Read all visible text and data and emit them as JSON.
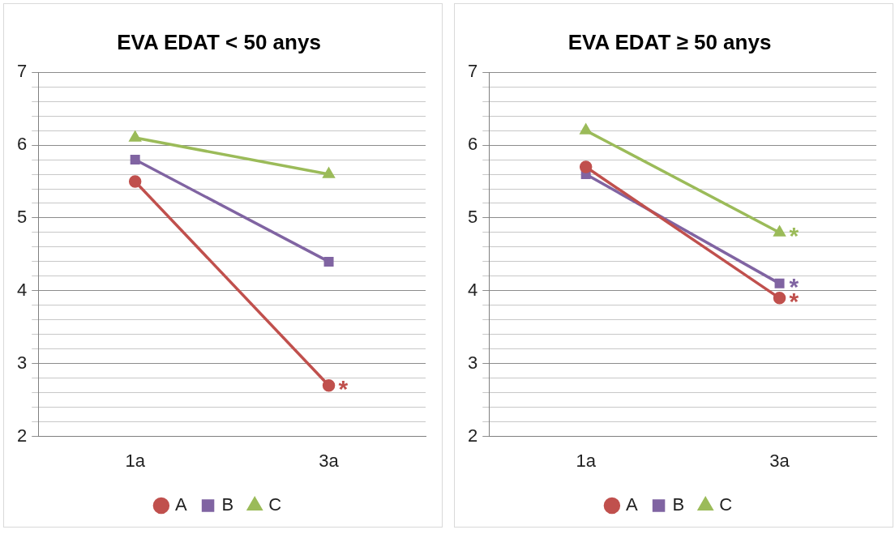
{
  "chart_data": [
    {
      "type": "line",
      "title": "EVA EDAT < 50 anys",
      "categories": [
        "1a",
        "3a"
      ],
      "series": [
        {
          "name": "A",
          "color": "#c0504d",
          "marker": "circle",
          "values": [
            5.5,
            2.7
          ]
        },
        {
          "name": "B",
          "color": "#8064a2",
          "marker": "square",
          "values": [
            5.8,
            4.4
          ]
        },
        {
          "name": "C",
          "color": "#9bbb59",
          "marker": "triangle",
          "values": [
            6.1,
            5.6
          ]
        }
      ],
      "ylim": [
        2,
        7
      ],
      "yticks": [
        2,
        {
          "value": 2.2,
          "label": null
        },
        {
          "value": 2.4,
          "label": null
        },
        {
          "value": 2.6,
          "label": null
        },
        {
          "value": 2.8,
          "label": null
        },
        3,
        {
          "value": 3.2,
          "label": null
        },
        {
          "value": 3.4,
          "label": null
        },
        {
          "value": 3.6,
          "label": null
        },
        {
          "value": 3.8,
          "label": null
        },
        4,
        {
          "value": 4.2,
          "label": null
        },
        {
          "value": 4.4,
          "label": null
        },
        {
          "value": 4.6,
          "label": null
        },
        {
          "value": 4.8,
          "label": null
        },
        5,
        {
          "value": 5.2,
          "label": null
        },
        {
          "value": 5.4,
          "label": null
        },
        {
          "value": 5.6,
          "label": null
        },
        {
          "value": 5.8,
          "label": null
        },
        6,
        {
          "value": 6.2,
          "label": null
        },
        {
          "value": 6.4,
          "label": null
        },
        {
          "value": 6.6,
          "label": null
        },
        {
          "value": 6.8,
          "label": null
        },
        7
      ],
      "grid": "y",
      "legend": "bottom",
      "line_style": "solid",
      "annotations": [
        {
          "text": "*",
          "x": "3a",
          "y": 2.7
        }
      ]
    },
    {
      "type": "line",
      "title": "EVA EDAT ≥ 50 anys",
      "categories": [
        "1a",
        "3a"
      ],
      "series": [
        {
          "name": "A",
          "color": "#c0504d",
          "marker": "circle",
          "values": [
            5.7,
            3.9
          ]
        },
        {
          "name": "B",
          "color": "#8064a2",
          "marker": "square",
          "values": [
            5.6,
            4.1
          ]
        },
        {
          "name": "C",
          "color": "#9bbb59",
          "marker": "triangle",
          "values": [
            6.2,
            4.8
          ]
        }
      ],
      "ylim": [
        2,
        7
      ],
      "yticks": [
        2,
        {
          "value": 2.2,
          "label": null
        },
        {
          "value": 2.4,
          "label": null
        },
        {
          "value": 2.6,
          "label": null
        },
        {
          "value": 2.8,
          "label": null
        },
        3,
        {
          "value": 3.2,
          "label": null
        },
        {
          "value": 3.4,
          "label": null
        },
        {
          "value": 3.6,
          "label": null
        },
        {
          "value": 3.8,
          "label": null
        },
        4,
        {
          "value": 4.2,
          "label": null
        },
        {
          "value": 4.4,
          "label": null
        },
        {
          "value": 4.6,
          "label": null
        },
        {
          "value": 4.8,
          "label": null
        },
        5,
        {
          "value": 5.2,
          "label": null
        },
        {
          "value": 5.4,
          "label": null
        },
        {
          "value": 5.6,
          "label": null
        },
        {
          "value": 5.8,
          "label": null
        },
        6,
        {
          "value": 6.2,
          "label": null
        },
        {
          "value": 6.4,
          "label": null
        },
        {
          "value": 6.6,
          "label": null
        },
        {
          "value": 6.8,
          "label": null
        },
        7
      ],
      "grid": "y",
      "legend": "bottom",
      "line_style": "solid",
      "annotations": [
        {
          "text": "*",
          "x": "3a",
          "y": 4.8
        },
        {
          "text": "*",
          "x": "3a",
          "y": 4.1
        },
        {
          "text": "*",
          "x": "3a",
          "y": 3.9
        }
      ]
    }
  ]
}
